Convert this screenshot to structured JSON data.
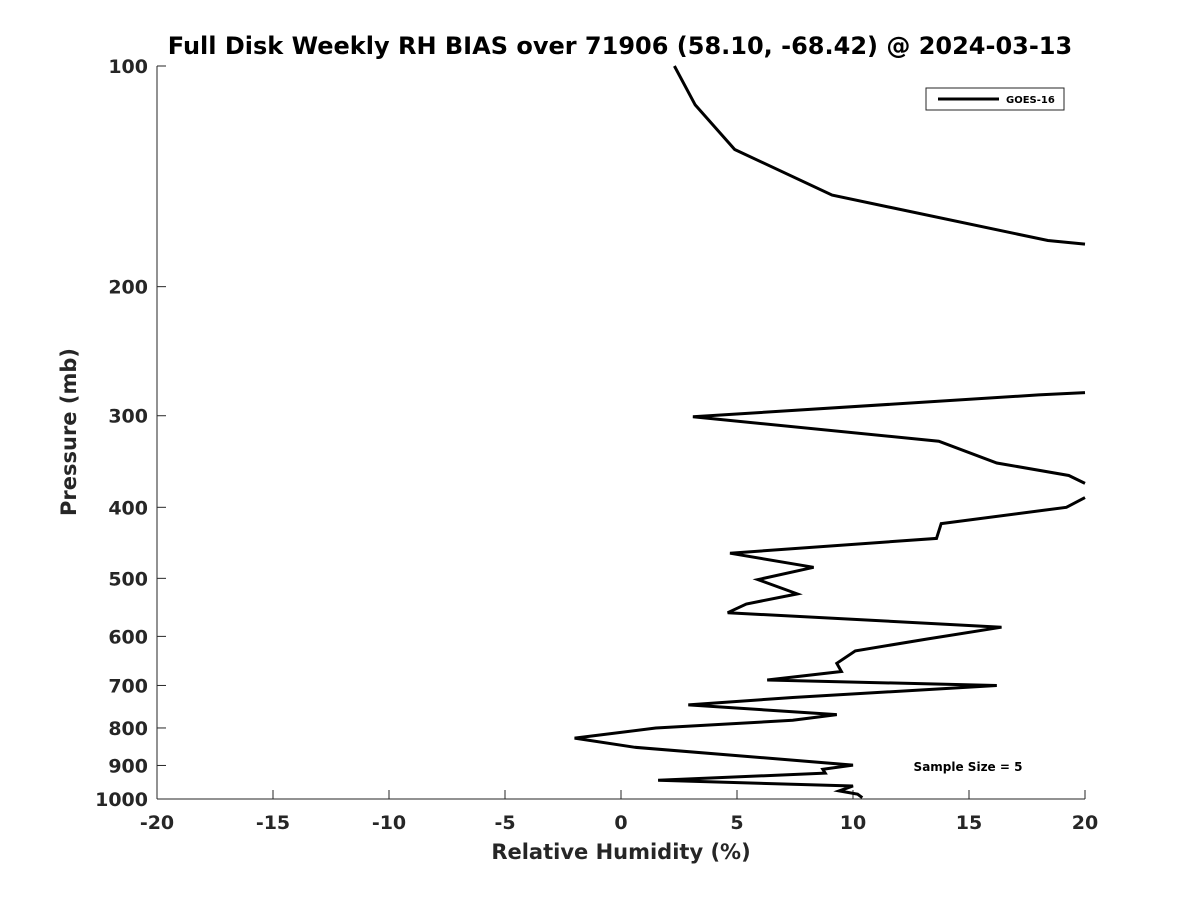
{
  "chart_data": {
    "type": "line",
    "title": "Full Disk Weekly RH BIAS over 71906 (58.10, -68.42) @ 2024-03-13",
    "xlabel": "Relative Humidity (%)",
    "ylabel": "Pressure (mb)",
    "xlim": [
      -20,
      20
    ],
    "ylim": [
      100,
      1000
    ],
    "y_scale": "log",
    "y_reversed": true,
    "x_ticks": [
      -20,
      -15,
      -10,
      -5,
      0,
      5,
      10,
      15,
      20
    ],
    "y_ticks": [
      100,
      200,
      300,
      400,
      500,
      600,
      700,
      800,
      900,
      1000
    ],
    "grid": false,
    "legend_position": "top-right",
    "annotation": "Sample Size = 5",
    "series": [
      {
        "name": "GOES-16",
        "color": "#000000",
        "points": [
          [
            2.3,
            100
          ],
          [
            3.2,
            113
          ],
          [
            4.9,
            130
          ],
          [
            9.1,
            150
          ],
          [
            18.4,
            173
          ],
          [
            20,
            175
          ],
          null,
          [
            20,
            279
          ],
          [
            18.0,
            281
          ],
          [
            3.1,
            301
          ],
          [
            13.7,
            325
          ],
          [
            16.2,
            348
          ],
          [
            19.3,
            362
          ],
          [
            20,
            371
          ],
          null,
          [
            20,
            388
          ],
          [
            19.2,
            400
          ],
          [
            13.8,
            421
          ],
          [
            13.6,
            441
          ],
          [
            4.7,
            462
          ],
          [
            8.3,
            483
          ],
          [
            5.9,
            502
          ],
          [
            7.6,
            525
          ],
          [
            5.4,
            542
          ],
          [
            4.6,
            557
          ],
          [
            16.4,
            583
          ],
          [
            13.2,
            605
          ],
          [
            10.1,
            628
          ],
          [
            9.3,
            653
          ],
          [
            9.5,
            670
          ],
          [
            6.3,
            688
          ],
          [
            16.2,
            700
          ],
          [
            7.4,
            727
          ],
          [
            2.9,
            744
          ],
          [
            9.3,
            767
          ],
          [
            7.4,
            781
          ],
          [
            1.5,
            800
          ],
          [
            -2.0,
            826
          ],
          [
            0.6,
            850
          ],
          [
            10.0,
            899
          ],
          [
            8.7,
            911
          ],
          [
            8.8,
            922
          ],
          [
            1.6,
            943
          ],
          [
            10.0,
            960
          ],
          [
            9.4,
            975
          ],
          [
            10.2,
            985
          ],
          [
            10.4,
            996
          ]
        ]
      }
    ]
  }
}
